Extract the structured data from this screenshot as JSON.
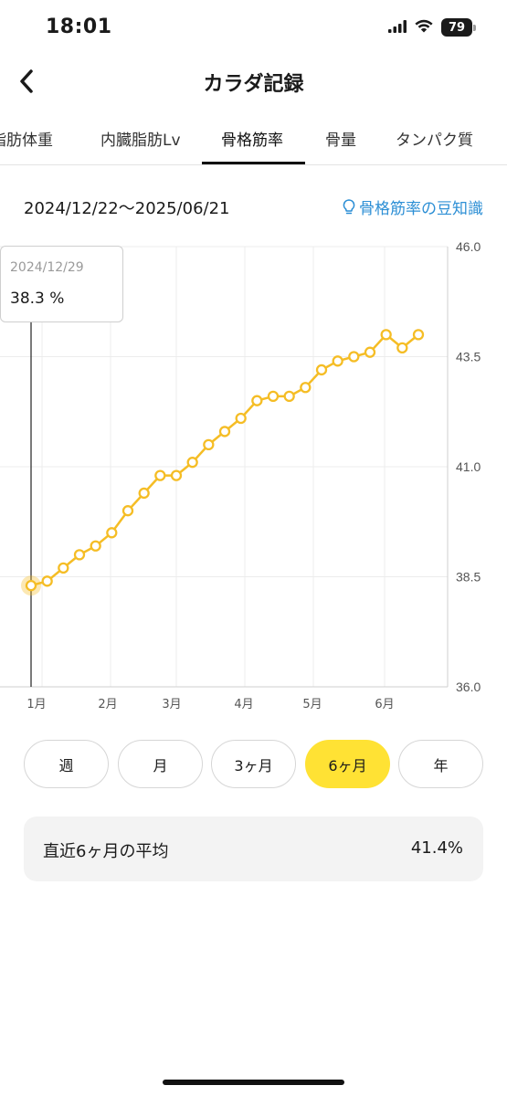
{
  "status_bar": {
    "time": "18:01",
    "battery": "79"
  },
  "header": {
    "title": "カラダ記録"
  },
  "tabs": [
    {
      "label": "脂肪体重",
      "active": false
    },
    {
      "label": "内臓脂肪Lv",
      "active": false
    },
    {
      "label": "骨格筋率",
      "active": true
    },
    {
      "label": "骨量",
      "active": false
    },
    {
      "label": "タンパク質",
      "active": false
    }
  ],
  "range": {
    "dates": "2024/12/22〜2025/06/21",
    "tips_link": "骨格筋率の豆知識"
  },
  "tooltip": {
    "date": "2024/12/29",
    "value": "38.3 %"
  },
  "periods": [
    {
      "label": "週",
      "active": false
    },
    {
      "label": "月",
      "active": false
    },
    {
      "label": "3ヶ月",
      "active": false
    },
    {
      "label": "6ヶ月",
      "active": true
    },
    {
      "label": "年",
      "active": false
    }
  ],
  "average": {
    "label": "直近6ヶ月の平均",
    "value": "41.4%"
  },
  "colors": {
    "line": "#f5bd25",
    "accent": "#ffe234",
    "link": "#2d8fd5"
  },
  "chart_data": {
    "type": "line",
    "x_tick_labels": [
      "1月",
      "2月",
      "3月",
      "4月",
      "5月",
      "6月"
    ],
    "y_tick_labels": [
      "46.0",
      "43.5",
      "41.0",
      "38.5",
      "36.0"
    ],
    "ylim": [
      36.0,
      46.0
    ],
    "xlim": [
      "2024-12-22",
      "2025-06-21"
    ],
    "highlighted_date": "2024-12-29",
    "grid": true,
    "series": [
      {
        "color": "#f5bd25",
        "points": [
          {
            "x": "2024-12-29",
            "y": 38.3
          },
          {
            "x": "2025-01-05",
            "y": 38.4
          },
          {
            "x": "2025-01-12",
            "y": 38.7
          },
          {
            "x": "2025-01-19",
            "y": 39.0
          },
          {
            "x": "2025-01-26",
            "y": 39.2
          },
          {
            "x": "2025-02-02",
            "y": 39.5
          },
          {
            "x": "2025-02-09",
            "y": 40.0
          },
          {
            "x": "2025-02-16",
            "y": 40.4
          },
          {
            "x": "2025-02-23",
            "y": 40.8
          },
          {
            "x": "2025-03-02",
            "y": 40.8
          },
          {
            "x": "2025-03-09",
            "y": 41.1
          },
          {
            "x": "2025-03-16",
            "y": 41.5
          },
          {
            "x": "2025-03-23",
            "y": 41.8
          },
          {
            "x": "2025-03-30",
            "y": 42.1
          },
          {
            "x": "2025-04-06",
            "y": 42.5
          },
          {
            "x": "2025-04-13",
            "y": 42.6
          },
          {
            "x": "2025-04-20",
            "y": 42.6
          },
          {
            "x": "2025-04-27",
            "y": 42.8
          },
          {
            "x": "2025-05-04",
            "y": 43.2
          },
          {
            "x": "2025-05-11",
            "y": 43.4
          },
          {
            "x": "2025-05-18",
            "y": 43.5
          },
          {
            "x": "2025-05-25",
            "y": 43.6
          },
          {
            "x": "2025-06-01",
            "y": 44.0
          },
          {
            "x": "2025-06-08",
            "y": 43.7
          },
          {
            "x": "2025-06-15",
            "y": 44.0
          }
        ]
      }
    ]
  }
}
